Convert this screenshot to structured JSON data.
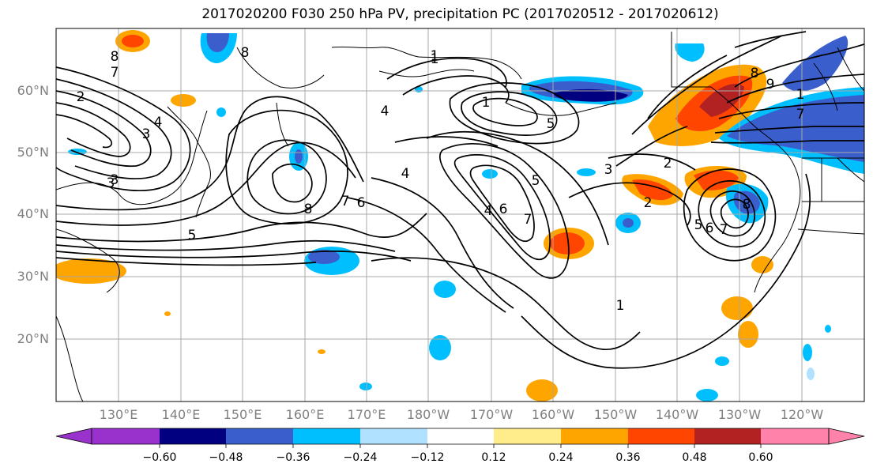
{
  "title": "2017020200 F030 250 hPa PV, precipitation PC (2017020512 - 2017020612)",
  "map": {
    "lat_labels": [
      "60°N",
      "50°N",
      "40°N",
      "30°N",
      "20°N"
    ],
    "lon_labels": [
      "130°E",
      "140°E",
      "150°E",
      "160°E",
      "170°E",
      "180°W",
      "170°W",
      "160°W",
      "150°W",
      "140°W",
      "130°W",
      "120°W"
    ],
    "pv_contour_labels": [
      "8",
      "7",
      "2",
      "3",
      "4",
      "3",
      "5",
      "8",
      "1",
      "1",
      "4",
      "5",
      "7",
      "6",
      "7",
      "8",
      "4",
      "3",
      "2",
      "2",
      "8",
      "9",
      "7",
      "1",
      "6",
      "4",
      "5",
      "7",
      "6",
      "8",
      "5",
      "3",
      "1",
      "1"
    ]
  },
  "colorbar": {
    "tick_labels": [
      "−0.60",
      "−0.48",
      "−0.36",
      "−0.24",
      "−0.12",
      "0.12",
      "0.24",
      "0.36",
      "0.48",
      "0.60"
    ],
    "colors": [
      "#9932cc",
      "#000080",
      "#3a5fcd",
      "#00bfff",
      "#b0e2ff",
      "#ffffff",
      "#ffec8b",
      "#ffa500",
      "#ff4500",
      "#b22222",
      "#ff82ab"
    ]
  }
}
